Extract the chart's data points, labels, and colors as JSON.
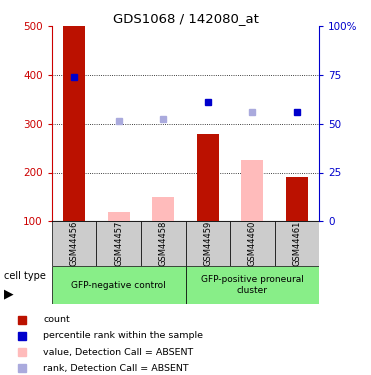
{
  "title": "GDS1068 / 142080_at",
  "samples": [
    "GSM44456",
    "GSM44457",
    "GSM44458",
    "GSM44459",
    "GSM44460",
    "GSM44461"
  ],
  "bar_values": [
    500,
    120,
    150,
    280,
    225,
    190
  ],
  "bar_colors": [
    "#bb1100",
    "#ffbbbb",
    "#ffbbbb",
    "#bb1100",
    "#ffbbbb",
    "#bb1100"
  ],
  "rank_values": [
    395,
    305,
    310,
    345,
    325,
    325
  ],
  "rank_colors": [
    "#0000cc",
    "#aaaadd",
    "#aaaadd",
    "#0000cc",
    "#aaaadd",
    "#0000cc"
  ],
  "ylim": [
    100,
    500
  ],
  "y_ticks": [
    100,
    200,
    300,
    400,
    500
  ],
  "y_right_labels": [
    "0",
    "25",
    "50",
    "75",
    "100%"
  ],
  "y_right_ticks": [
    100,
    200,
    300,
    400,
    500
  ],
  "grid_values": [
    200,
    300,
    400
  ],
  "group1_label": "GFP-negative control",
  "group2_label": "GFP-positive proneural\ncluster",
  "cell_type_label": "cell type",
  "legend": [
    {
      "label": "count",
      "color": "#bb1100"
    },
    {
      "label": "percentile rank within the sample",
      "color": "#0000cc"
    },
    {
      "label": "value, Detection Call = ABSENT",
      "color": "#ffbbbb"
    },
    {
      "label": "rank, Detection Call = ABSENT",
      "color": "#aaaadd"
    }
  ],
  "left_axis_color": "#cc0000",
  "right_axis_color": "#0000cc",
  "bar_width": 0.5
}
